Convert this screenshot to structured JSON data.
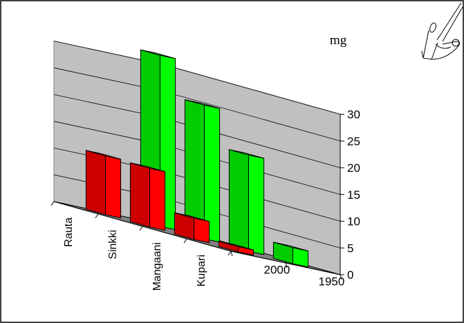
{
  "chart_data": {
    "type": "bar",
    "subtype": "3d-grouped",
    "categories": [
      "Rauta",
      "Sinkki",
      "Mangaani",
      "Kupari"
    ],
    "series": [
      {
        "name": "1950",
        "color": "#00ff00",
        "values": [
          32,
          25,
          18,
          3
        ]
      },
      {
        "name": "2000",
        "color": "#ff0000",
        "values": [
          11,
          11,
          4,
          1
        ]
      }
    ],
    "ylabel": "mg",
    "ylim": [
      0,
      30
    ],
    "yticks": [
      0,
      5,
      10,
      15,
      20,
      25,
      30
    ],
    "grid": true,
    "legend": "none"
  },
  "icons": {
    "corner": "pen-hand-icon"
  }
}
